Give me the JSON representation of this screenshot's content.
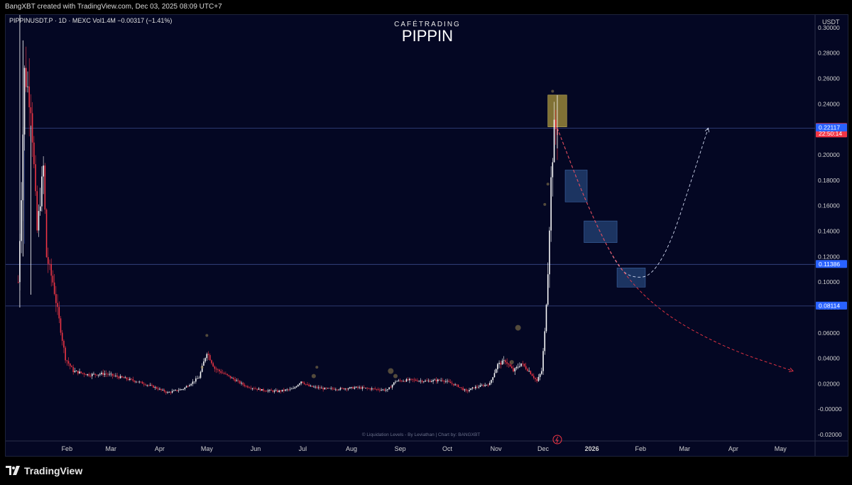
{
  "topbar": {
    "text": "BangXBT created with TradingView.com, Dec 03, 2025 08:09 UTC+7"
  },
  "header": {
    "symbol_line": "PIPPINUSDT.P · 1D · MEXC  Vol1.4M  −0.00317 (−1.41%)",
    "brand_small": "CAFÉTRADING",
    "brand_big": "PIPPIN"
  },
  "watermark": "© Liquidation Levels - By Leviathan  |  Chart by: BANGXBT",
  "footer": {
    "logo_text": "TradingView"
  },
  "colors": {
    "bg": "#040723",
    "up": "#ffffff",
    "down": "#f23645",
    "accent_blue": "#2962ff",
    "zone_yellow": "#a08f3c",
    "zone_blue": "#2f4f86"
  },
  "chart_data": {
    "type": "candlestick",
    "currency": "USDT",
    "ylim": [
      -0.025,
      0.31
    ],
    "y_ticks": [
      "0.30000",
      "0.28000",
      "0.26000",
      "0.24000",
      "0.22000",
      "0.20000",
      "0.18000",
      "0.16000",
      "0.14000",
      "0.12000",
      "0.10000",
      "0.08000",
      "0.06000",
      "0.04000",
      "0.02000",
      "-0.00000",
      "-0.02000"
    ],
    "y_tick_values": [
      0.3,
      0.28,
      0.26,
      0.24,
      0.22,
      0.2,
      0.18,
      0.16,
      0.14,
      0.12,
      0.1,
      0.08,
      0.06,
      0.04,
      0.02,
      0.0,
      -0.02
    ],
    "x_tick_labels": [
      "Feb",
      "Mar",
      "Apr",
      "May",
      "Jun",
      "Jul",
      "Aug",
      "Sep",
      "Oct",
      "Nov",
      "Dec",
      "2026",
      "Feb",
      "Mar",
      "Apr",
      "May"
    ],
    "x_tick_days": [
      31,
      59,
      90,
      120,
      151,
      181,
      212,
      243,
      273,
      304,
      334,
      365,
      396,
      424,
      455,
      485
    ],
    "x_range_days": [
      -8,
      507
    ],
    "price_labels": [
      {
        "value": 0.22159,
        "text": "0.22159",
        "sub": "22:50:14",
        "color": "#f23645"
      },
      {
        "value": 0.22117,
        "text": "0.22117",
        "color": "#2962ff"
      },
      {
        "value": 0.11386,
        "text": "0.11386",
        "color": "#2962ff"
      },
      {
        "value": 0.08114,
        "text": "0.08114",
        "color": "#2962ff"
      }
    ],
    "horizontal_lines": [
      0.221,
      0.11386,
      0.08114
    ],
    "zones": [
      {
        "type": "yellow",
        "day_start": 337,
        "day_end": 349,
        "top": 0.247,
        "bottom": 0.222
      },
      {
        "type": "blue",
        "day_start": 348,
        "day_end": 362,
        "top": 0.188,
        "bottom": 0.163
      },
      {
        "type": "blue",
        "day_start": 360,
        "day_end": 381,
        "top": 0.148,
        "bottom": 0.131
      },
      {
        "type": "blue",
        "day_start": 381,
        "day_end": 399,
        "top": 0.111,
        "bottom": 0.096
      }
    ],
    "projections": [
      {
        "color": "#d0d8f0",
        "points": [
          [
            343,
            0.221
          ],
          [
            362,
            0.16
          ],
          [
            382,
            0.11
          ],
          [
            392,
            0.103
          ],
          [
            403,
            0.105
          ],
          [
            415,
            0.13
          ],
          [
            427,
            0.175
          ],
          [
            439,
            0.221
          ]
        ]
      },
      {
        "color": "#f23645",
        "points": [
          [
            343,
            0.221
          ],
          [
            362,
            0.16
          ],
          [
            382,
            0.11
          ],
          [
            410,
            0.075
          ],
          [
            450,
            0.048
          ],
          [
            493,
            0.03
          ]
        ]
      }
    ],
    "key_points": [
      [
        0,
        0.1
      ],
      [
        2,
        0.17
      ],
      [
        4,
        0.265
      ],
      [
        8,
        0.24
      ],
      [
        12,
        0.14
      ],
      [
        16,
        0.19
      ],
      [
        18,
        0.12
      ],
      [
        22,
        0.1
      ],
      [
        26,
        0.07
      ],
      [
        30,
        0.04
      ],
      [
        35,
        0.03
      ],
      [
        45,
        0.027
      ],
      [
        55,
        0.028
      ],
      [
        65,
        0.025
      ],
      [
        75,
        0.022
      ],
      [
        85,
        0.018
      ],
      [
        95,
        0.013
      ],
      [
        105,
        0.016
      ],
      [
        115,
        0.025
      ],
      [
        120,
        0.045
      ],
      [
        125,
        0.032
      ],
      [
        135,
        0.025
      ],
      [
        145,
        0.018
      ],
      [
        155,
        0.015
      ],
      [
        165,
        0.014
      ],
      [
        175,
        0.016
      ],
      [
        180,
        0.022
      ],
      [
        185,
        0.018
      ],
      [
        195,
        0.016
      ],
      [
        205,
        0.016
      ],
      [
        215,
        0.017
      ],
      [
        225,
        0.016
      ],
      [
        235,
        0.015
      ],
      [
        240,
        0.022
      ],
      [
        250,
        0.023
      ],
      [
        260,
        0.022
      ],
      [
        270,
        0.023
      ],
      [
        280,
        0.018
      ],
      [
        285,
        0.014
      ],
      [
        290,
        0.017
      ],
      [
        300,
        0.02
      ],
      [
        305,
        0.035
      ],
      [
        310,
        0.038
      ],
      [
        315,
        0.03
      ],
      [
        320,
        0.036
      ],
      [
        325,
        0.03
      ],
      [
        330,
        0.022
      ],
      [
        333,
        0.03
      ],
      [
        335,
        0.06
      ],
      [
        337,
        0.11
      ],
      [
        339,
        0.18
      ],
      [
        341,
        0.22
      ],
      [
        343,
        0.221
      ]
    ]
  }
}
